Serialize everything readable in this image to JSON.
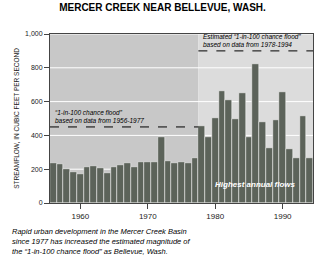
{
  "chart_data": {
    "type": "bar",
    "title": "MERCER CREEK NEAR BELLEVUE, WASH.",
    "ylabel": "STREAMFLOW, IN CUBIC FEET PER SECOND",
    "x": [
      1956,
      1957,
      1958,
      1959,
      1960,
      1961,
      1962,
      1963,
      1964,
      1965,
      1966,
      1967,
      1968,
      1969,
      1970,
      1971,
      1972,
      1973,
      1974,
      1975,
      1976,
      1977,
      1978,
      1979,
      1980,
      1981,
      1982,
      1983,
      1984,
      1985,
      1986,
      1987,
      1988,
      1989,
      1990,
      1991,
      1992,
      1993,
      1994
    ],
    "values": [
      235,
      230,
      200,
      185,
      170,
      215,
      220,
      210,
      180,
      215,
      225,
      235,
      215,
      245,
      240,
      245,
      390,
      250,
      235,
      240,
      235,
      265,
      455,
      390,
      505,
      660,
      610,
      500,
      650,
      390,
      825,
      480,
      325,
      490,
      655,
      320,
      265,
      515,
      265
    ],
    "color": "#5c635a",
    "xlim": [
      1955.5,
      1994.5
    ],
    "xticks": [
      1960,
      1970,
      1980,
      1990
    ],
    "ylim": [
      0,
      1000
    ],
    "yticks": [
      0,
      200,
      400,
      600,
      800,
      {
        "value": 1000,
        "label": "1,000"
      }
    ],
    "grid": true,
    "periods": [
      {
        "from": 1955.5,
        "to": 1977.5,
        "color": "#c8c8c8"
      },
      {
        "from": 1977.5,
        "to": 1994.5,
        "color": "#dcdcdc"
      }
    ],
    "flood_lines": [
      {
        "value": 450,
        "from": 1955.5,
        "to": 1977.5,
        "label": "“1-in-100 chance flood”\nbased on data from 1956-1977"
      },
      {
        "value": 900,
        "from": 1977.5,
        "to": 1994.5,
        "label": "Estimated “1-in-100 chance flood”\nbased on data from 1978-1994"
      }
    ],
    "annotation": "Highest annual flows",
    "caption": "Rapid urban development in the Mercer Creek Basin\nsince 1977 has increased the estimated magnitude of\nthe “1-in-100 chance flood” as Bellevue, Wash."
  }
}
